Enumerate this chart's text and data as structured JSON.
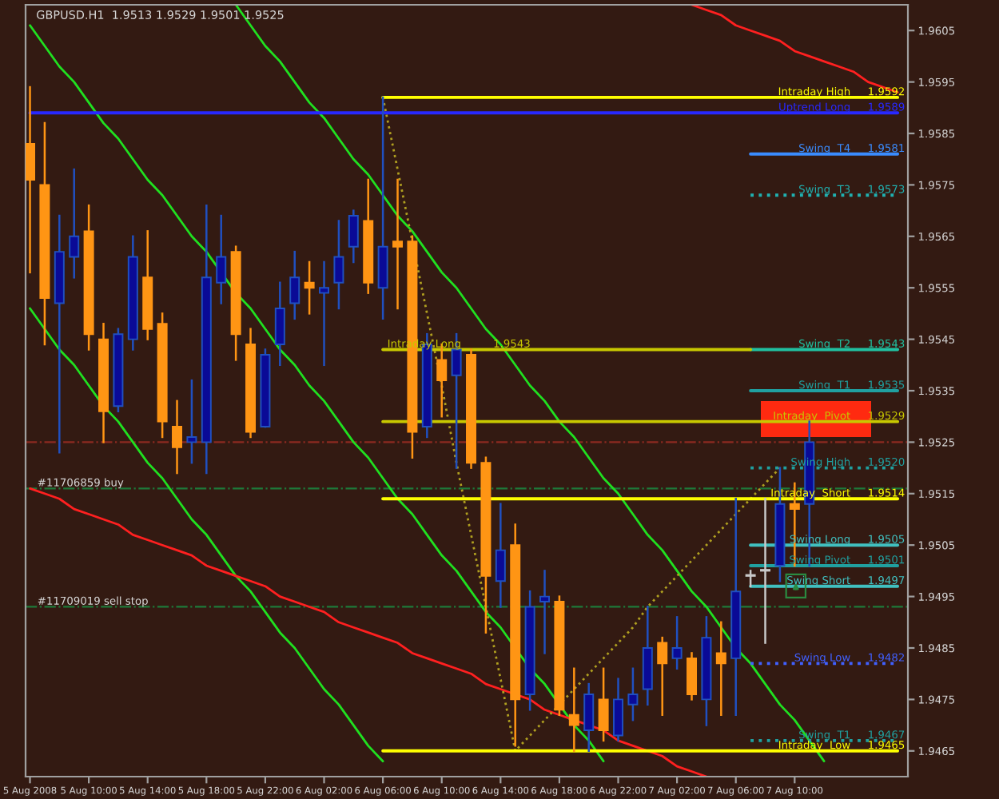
{
  "chart_data": {
    "type": "candlestick",
    "title": "GBPUSD.H1  1.9513 1.9529 1.9501 1.9525",
    "categories": [
      "5 Aug 2008",
      null,
      null,
      null,
      "5 Aug 10:00",
      null,
      null,
      null,
      "5 Aug 14:00",
      null,
      null,
      null,
      "5 Aug 18:00",
      null,
      null,
      null,
      "5 Aug 22:00",
      null,
      null,
      null,
      "6 Aug 02:00",
      null,
      null,
      null,
      "6 Aug 06:00",
      null,
      null,
      null,
      "6 Aug 10:00",
      null,
      null,
      null,
      "6 Aug 14:00",
      null,
      null,
      null,
      "6 Aug 18:00",
      null,
      null,
      null,
      "6 Aug 22:00",
      null,
      null,
      null,
      "7 Aug 02:00",
      null,
      null,
      null,
      "7 Aug 06:00",
      null,
      null,
      null,
      "7 Aug 10:00",
      null,
      null,
      null,
      null,
      null,
      null,
      null
    ],
    "ohlc": [
      [
        1.9583,
        1.9594,
        1.9558,
        1.9576
      ],
      [
        1.9575,
        1.9587,
        1.9544,
        1.9553
      ],
      [
        1.9552,
        1.9569,
        1.9523,
        1.9562
      ],
      [
        1.9561,
        1.9578,
        1.9557,
        1.9565
      ],
      [
        1.9566,
        1.9571,
        1.9543,
        1.9546
      ],
      [
        1.9545,
        1.9548,
        1.9525,
        1.9531
      ],
      [
        1.9532,
        1.9547,
        1.9531,
        1.9546
      ],
      [
        1.9545,
        1.9565,
        1.9543,
        1.9561
      ],
      [
        1.9557,
        1.9566,
        1.9545,
        1.9547
      ],
      [
        1.9548,
        1.955,
        1.9526,
        1.9529
      ],
      [
        1.9528,
        1.9533,
        1.9519,
        1.9524
      ],
      [
        1.9525,
        1.9537,
        1.9521,
        1.9526
      ],
      [
        1.9525,
        1.9571,
        1.9519,
        1.9557
      ],
      [
        1.9556,
        1.9569,
        1.9552,
        1.9561
      ],
      [
        1.9562,
        1.9563,
        1.9541,
        1.9546
      ],
      [
        1.9544,
        1.9547,
        1.9526,
        1.9527
      ],
      [
        1.9528,
        1.9543,
        1.9528,
        1.9542
      ],
      [
        1.9544,
        1.9556,
        1.954,
        1.9551
      ],
      [
        1.9552,
        1.9562,
        1.9549,
        1.9557
      ],
      [
        1.9556,
        1.956,
        1.955,
        1.9555
      ],
      [
        1.9554,
        1.956,
        1.954,
        1.9555
      ],
      [
        1.9556,
        1.9568,
        1.9551,
        1.9561
      ],
      [
        1.9563,
        1.957,
        1.956,
        1.9569
      ],
      [
        1.9568,
        1.9576,
        1.9554,
        1.9556
      ],
      [
        1.9555,
        1.9592,
        1.9549,
        1.9563
      ],
      [
        1.9564,
        1.9576,
        1.9551,
        1.9563
      ],
      [
        1.9564,
        1.9565,
        1.9522,
        1.9527
      ],
      [
        1.9528,
        1.9546,
        1.9526,
        1.9544
      ],
      [
        1.9541,
        1.9544,
        1.953,
        1.9537
      ],
      [
        1.9538,
        1.9546,
        1.952,
        1.9543
      ],
      [
        1.9542,
        1.9543,
        1.952,
        1.9521
      ],
      [
        1.9521,
        1.9522,
        1.9488,
        1.9499
      ],
      [
        1.9498,
        1.9513,
        1.9493,
        1.9504
      ],
      [
        1.9505,
        1.9509,
        1.9466,
        1.9475
      ],
      [
        1.9476,
        1.9496,
        1.9473,
        1.9493
      ],
      [
        1.9494,
        1.95,
        1.9484,
        1.9495
      ],
      [
        1.9494,
        1.9495,
        1.9472,
        1.9473
      ],
      [
        1.9472,
        1.9481,
        1.9465,
        1.947
      ],
      [
        1.9469,
        1.9478,
        1.9465,
        1.9476
      ],
      [
        1.9475,
        1.9481,
        1.9467,
        1.9469
      ],
      [
        1.9468,
        1.9479,
        1.9467,
        1.9475
      ],
      [
        1.9474,
        1.9481,
        1.9471,
        1.9476
      ],
      [
        1.9477,
        1.9493,
        1.9474,
        1.9485
      ],
      [
        1.9486,
        1.9487,
        1.9472,
        1.9482
      ],
      [
        1.9483,
        1.9491,
        1.9481,
        1.9485
      ],
      [
        1.9483,
        1.9484,
        1.9475,
        1.9476
      ],
      [
        1.9475,
        1.9491,
        1.947,
        1.9487
      ],
      [
        1.9484,
        1.949,
        1.9472,
        1.9482
      ],
      [
        1.9483,
        1.9514,
        1.9472,
        1.9496
      ],
      [
        1.9499,
        1.95,
        1.9497,
        1.9499
      ],
      [
        1.95,
        1.9514,
        1.9486,
        1.95
      ],
      [
        1.9501,
        1.952,
        1.9498,
        1.9513
      ],
      [
        1.9513,
        1.9517,
        1.9501,
        1.9512
      ],
      [
        1.9513,
        1.9529,
        1.9501,
        1.9525
      ],
      null,
      null,
      null,
      null,
      null,
      null
    ],
    "colors": [
      "#ff9514",
      "#ff9514",
      "#0a0a96",
      "#0a0a96",
      "#ff9514",
      "#ff9514",
      "#0a0a96",
      "#0a0a96",
      "#ff9514",
      "#ff9514",
      "#ff9514",
      "#0a0a96",
      "#0a0a96",
      "#0a0a96",
      "#ff9514",
      "#ff9514",
      "#0a0a96",
      "#0a0a96",
      "#0a0a96",
      "#ff9514",
      "#0a0a96",
      "#0a0a96",
      "#0a0a96",
      "#ff9514",
      "#0a0a96",
      "#ff9514",
      "#ff9514",
      "#0a0a96",
      "#ff9514",
      "#0a0a96",
      "#ff9514",
      "#ff9514",
      "#0a0a96",
      "#ff9514",
      "#0a0a96",
      "#0a0a96",
      "#ff9514",
      "#ff9514",
      "#0a0a96",
      "#ff9514",
      "#0a0a96",
      "#0a0a96",
      "#0a0a96",
      "#ff9514",
      "#0a0a96",
      "#ff9514",
      "#0a0a96",
      "#ff9514",
      "#0a0a96",
      "#c8c8c8",
      "#c8c8c8",
      "#0a0a96",
      "#ff9514",
      "#0a0a96",
      null,
      null,
      null,
      null,
      null,
      null
    ],
    "series": [
      {
        "type": "line",
        "color": "#20e020",
        "values": [
          1.9551,
          1.9547,
          1.9543,
          1.954,
          1.9536,
          1.9532,
          1.9529,
          1.9525,
          1.9521,
          1.9518,
          1.9514,
          1.951,
          1.9507,
          1.9503,
          1.9499,
          1.9496,
          1.9492,
          1.9488,
          1.9485,
          1.9481,
          1.9477,
          1.9474,
          1.947,
          1.9466,
          1.9463,
          null,
          null,
          null,
          null,
          null,
          null,
          null,
          null,
          null,
          null,
          null,
          null,
          null,
          null,
          null,
          null,
          null,
          null,
          null,
          null,
          null,
          null,
          null,
          null,
          null,
          null,
          null,
          null,
          null,
          null,
          null,
          null,
          null,
          null,
          null
        ]
      },
      {
        "type": "line",
        "color": "#20e020",
        "values": [
          1.9606,
          1.9602,
          1.9598,
          1.9595,
          1.9591,
          1.9587,
          1.9584,
          1.958,
          1.9576,
          1.9573,
          1.9569,
          1.9565,
          1.9562,
          1.9558,
          1.9554,
          1.9551,
          1.9547,
          1.9543,
          1.954,
          1.9536,
          1.9533,
          1.9529,
          1.9525,
          1.9522,
          1.9518,
          1.9514,
          1.9511,
          1.9507,
          1.9503,
          1.95,
          1.9496,
          1.9492,
          1.9489,
          1.9485,
          1.9481,
          1.9478,
          1.9474,
          1.947,
          1.9467,
          1.9463,
          null,
          null,
          null,
          null,
          null,
          null,
          null,
          null,
          null,
          null,
          null,
          null,
          null,
          null,
          null,
          null,
          null,
          null,
          null,
          null
        ]
      },
      {
        "type": "line",
        "color": "#20e020",
        "values": [
          null,
          null,
          null,
          null,
          null,
          null,
          null,
          null,
          null,
          null,
          null,
          null,
          null,
          null,
          1.961,
          1.9606,
          1.9602,
          1.9599,
          1.9595,
          1.9591,
          1.9588,
          1.9584,
          1.958,
          1.9577,
          1.9573,
          1.9569,
          1.9566,
          1.9562,
          1.9558,
          1.9555,
          1.9551,
          1.9547,
          1.9544,
          1.954,
          1.9536,
          1.9533,
          1.9529,
          1.9526,
          1.9522,
          1.9518,
          1.9515,
          1.9511,
          1.9507,
          1.9504,
          1.95,
          1.9496,
          1.9493,
          1.9489,
          1.9485,
          1.9482,
          1.9478,
          1.9474,
          1.9471,
          1.9467,
          1.9463,
          null,
          null,
          null,
          null,
          null
        ]
      },
      {
        "type": "line",
        "color": "#ff2020",
        "values": [
          null,
          null,
          null,
          null,
          null,
          null,
          null,
          null,
          null,
          null,
          null,
          null,
          null,
          null,
          null,
          null,
          null,
          null,
          null,
          null,
          null,
          null,
          null,
          null,
          null,
          null,
          null,
          null,
          null,
          null,
          null,
          null,
          null,
          null,
          null,
          null,
          null,
          null,
          null,
          null,
          null,
          null,
          null,
          null,
          null,
          1.961,
          1.9609,
          1.9608,
          1.9606,
          1.9605,
          1.9604,
          1.9603,
          1.9601,
          1.96,
          1.9599,
          1.9598,
          1.9597,
          1.9595,
          1.9594,
          1.9593
        ]
      },
      {
        "type": "line",
        "color": "#ff2020",
        "values": [
          1.9516,
          1.9515,
          1.9514,
          1.9512,
          1.9511,
          1.951,
          1.9509,
          1.9507,
          1.9506,
          1.9505,
          1.9504,
          1.9503,
          1.9501,
          1.95,
          1.9499,
          1.9498,
          1.9497,
          1.9495,
          1.9494,
          1.9493,
          1.9492,
          1.949,
          1.9489,
          1.9488,
          1.9487,
          1.9486,
          1.9484,
          1.9483,
          1.9482,
          1.9481,
          1.948,
          1.9478,
          1.9477,
          1.9476,
          1.9475,
          1.9473,
          1.9472,
          1.9471,
          1.947,
          1.9469,
          1.9467,
          1.9466,
          1.9465,
          1.9464,
          1.9462,
          1.9461,
          1.946,
          null,
          null,
          null,
          null,
          null,
          null,
          null,
          null,
          null,
          null,
          null,
          null,
          null
        ]
      },
      {
        "type": "line",
        "color": "#b0a020",
        "line_style": "dotted",
        "values": [
          null,
          null,
          null,
          null,
          null,
          null,
          null,
          null,
          null,
          null,
          null,
          null,
          null,
          null,
          null,
          null,
          null,
          null,
          null,
          null,
          null,
          null,
          null,
          null,
          1.9592,
          1.9578,
          1.9564,
          1.955,
          1.9536,
          1.9521,
          1.9507,
          1.9493,
          1.9479,
          1.9465,
          1.9468,
          1.9471,
          1.9474,
          1.9477,
          1.948,
          1.9483,
          1.9486,
          1.9489,
          1.9493,
          1.9496,
          1.9499,
          1.9502,
          1.9505,
          1.9508,
          1.9511,
          1.9514,
          1.9517,
          1.952,
          null,
          null,
          null,
          null,
          null,
          null,
          null,
          null
        ]
      },
      {
        "type": "line",
        "name": "Intraday High",
        "color": "#ffff00",
        "values": [
          null,
          null,
          null,
          null,
          null,
          null,
          null,
          null,
          null,
          null,
          null,
          null,
          null,
          null,
          null,
          null,
          null,
          null,
          null,
          null,
          null,
          null,
          null,
          null,
          1.9592,
          1.9592,
          1.9592,
          1.9592,
          1.9592,
          1.9592,
          1.9592,
          1.9592,
          1.9592,
          1.9592,
          1.9592,
          1.9592,
          1.9592,
          1.9592,
          1.9592,
          1.9592,
          1.9592,
          1.9592,
          1.9592,
          1.9592,
          1.9592,
          1.9592,
          1.9592,
          1.9592,
          1.9592,
          1.9592,
          1.9592,
          1.9592,
          1.9592,
          1.9592,
          1.9592,
          1.9592,
          1.9592,
          1.9592,
          1.9592,
          1.9592
        ]
      },
      {
        "type": "line",
        "name": "Uptrend Long",
        "color": "#2828ff",
        "values": [
          1.9589,
          1.9589,
          1.9589,
          1.9589,
          1.9589,
          1.9589,
          1.9589,
          1.9589,
          1.9589,
          1.9589,
          1.9589,
          1.9589,
          1.9589,
          1.9589,
          1.9589,
          1.9589,
          1.9589,
          1.9589,
          1.9589,
          1.9589,
          1.9589,
          1.9589,
          1.9589,
          1.9589,
          1.9589,
          1.9589,
          1.9589,
          1.9589,
          1.9589,
          1.9589,
          1.9589,
          1.9589,
          1.9589,
          1.9589,
          1.9589,
          1.9589,
          1.9589,
          1.9589,
          1.9589,
          1.9589,
          1.9589,
          1.9589,
          1.9589,
          1.9589,
          1.9589,
          1.9589,
          1.9589,
          1.9589,
          1.9589,
          1.9589,
          1.9589,
          1.9589,
          1.9589,
          1.9589,
          1.9589,
          1.9589,
          1.9589,
          1.9589,
          1.9589,
          1.9589
        ]
      },
      {
        "type": "line",
        "name": "Swing  T4",
        "color": "#3a8cff",
        "values": [
          null,
          null,
          null,
          null,
          null,
          null,
          null,
          null,
          null,
          null,
          null,
          null,
          null,
          null,
          null,
          null,
          null,
          null,
          null,
          null,
          null,
          null,
          null,
          null,
          null,
          null,
          null,
          null,
          null,
          null,
          null,
          null,
          null,
          null,
          null,
          null,
          null,
          null,
          null,
          null,
          null,
          null,
          null,
          null,
          null,
          null,
          null,
          null,
          null,
          1.9581,
          1.9581,
          1.9581,
          1.9581,
          1.9581,
          1.9581,
          1.9581,
          1.9581,
          1.9581,
          1.9581,
          1.9581
        ]
      },
      {
        "type": "line",
        "name": "Swing  T3",
        "color": "#20b0b0",
        "line_style": "dotted",
        "values": [
          null,
          null,
          null,
          null,
          null,
          null,
          null,
          null,
          null,
          null,
          null,
          null,
          null,
          null,
          null,
          null,
          null,
          null,
          null,
          null,
          null,
          null,
          null,
          null,
          null,
          null,
          null,
          null,
          null,
          null,
          null,
          null,
          null,
          null,
          null,
          null,
          null,
          null,
          null,
          null,
          null,
          null,
          null,
          null,
          null,
          null,
          null,
          null,
          null,
          1.9573,
          1.9573,
          1.9573,
          1.9573,
          1.9573,
          1.9573,
          1.9573,
          1.9573,
          1.9573,
          1.9573,
          1.9573
        ]
      },
      {
        "type": "line",
        "name": "Swing  T2",
        "color": "#20c0a0",
        "values": [
          null,
          null,
          null,
          null,
          null,
          null,
          null,
          null,
          null,
          null,
          null,
          null,
          null,
          null,
          null,
          null,
          null,
          null,
          null,
          null,
          null,
          null,
          null,
          null,
          null,
          null,
          null,
          null,
          null,
          null,
          null,
          null,
          null,
          null,
          null,
          null,
          null,
          null,
          null,
          null,
          null,
          null,
          null,
          null,
          null,
          null,
          null,
          null,
          null,
          1.9543,
          1.9543,
          1.9543,
          1.9543,
          1.9543,
          1.9543,
          1.9543,
          1.9543,
          1.9543,
          1.9543,
          1.9543
        ]
      },
      {
        "type": "line",
        "name": "Intraday Long",
        "color": "#c8c800",
        "values": [
          null,
          null,
          null,
          null,
          null,
          null,
          null,
          null,
          null,
          null,
          null,
          null,
          null,
          null,
          null,
          null,
          null,
          null,
          null,
          null,
          null,
          null,
          null,
          null,
          1.9543,
          1.9543,
          1.9543,
          1.9543,
          1.9543,
          1.9543,
          1.9543,
          1.9543,
          1.9543,
          1.9543,
          1.9543,
          1.9543,
          1.9543,
          1.9543,
          1.9543,
          1.9543,
          1.9543,
          1.9543,
          1.9543,
          1.9543,
          1.9543,
          1.9543,
          1.9543,
          1.9543,
          1.9543,
          1.9543,
          null,
          null,
          null,
          null,
          null,
          null,
          null,
          null,
          null,
          null
        ]
      },
      {
        "type": "line",
        "name": "Swing  T1",
        "color": "#20a0a0",
        "values": [
          null,
          null,
          null,
          null,
          null,
          null,
          null,
          null,
          null,
          null,
          null,
          null,
          null,
          null,
          null,
          null,
          null,
          null,
          null,
          null,
          null,
          null,
          null,
          null,
          null,
          null,
          null,
          null,
          null,
          null,
          null,
          null,
          null,
          null,
          null,
          null,
          null,
          null,
          null,
          null,
          null,
          null,
          null,
          null,
          null,
          null,
          null,
          null,
          null,
          1.9535,
          1.9535,
          1.9535,
          1.9535,
          1.9535,
          1.9535,
          1.9535,
          1.9535,
          1.9535,
          1.9535,
          1.9535
        ]
      },
      {
        "type": "line",
        "name": "Intraday  Pivot",
        "color": "#c8c800",
        "values": [
          null,
          null,
          null,
          null,
          null,
          null,
          null,
          null,
          null,
          null,
          null,
          null,
          null,
          null,
          null,
          null,
          null,
          null,
          null,
          null,
          null,
          null,
          null,
          null,
          1.9529,
          1.9529,
          1.9529,
          1.9529,
          1.9529,
          1.9529,
          1.9529,
          1.9529,
          1.9529,
          1.9529,
          1.9529,
          1.9529,
          1.9529,
          1.9529,
          1.9529,
          1.9529,
          1.9529,
          1.9529,
          1.9529,
          1.9529,
          1.9529,
          1.9529,
          1.9529,
          1.9529,
          1.9529,
          1.9529,
          1.9529,
          1.9529,
          1.9529,
          1.9529,
          1.9529,
          1.9529,
          1.9529,
          1.9529,
          1.9529,
          1.9529
        ]
      },
      {
        "type": "line",
        "name": "Swing High",
        "color": "#20a0a0",
        "line_style": "dotted",
        "values": [
          null,
          null,
          null,
          null,
          null,
          null,
          null,
          null,
          null,
          null,
          null,
          null,
          null,
          null,
          null,
          null,
          null,
          null,
          null,
          null,
          null,
          null,
          null,
          null,
          null,
          null,
          null,
          null,
          null,
          null,
          null,
          null,
          null,
          null,
          null,
          null,
          null,
          null,
          null,
          null,
          null,
          null,
          null,
          null,
          null,
          null,
          null,
          null,
          null,
          1.952,
          1.952,
          1.952,
          1.952,
          1.952,
          1.952,
          1.952,
          1.952,
          1.952,
          1.952,
          1.952
        ]
      },
      {
        "type": "line",
        "name": "Intraday  Short",
        "color": "#ffff00",
        "values": [
          null,
          null,
          null,
          null,
          null,
          null,
          null,
          null,
          null,
          null,
          null,
          null,
          null,
          null,
          null,
          null,
          null,
          null,
          null,
          null,
          null,
          null,
          null,
          null,
          1.9514,
          1.9514,
          1.9514,
          1.9514,
          1.9514,
          1.9514,
          1.9514,
          1.9514,
          1.9514,
          1.9514,
          1.9514,
          1.9514,
          1.9514,
          1.9514,
          1.9514,
          1.9514,
          1.9514,
          1.9514,
          1.9514,
          1.9514,
          1.9514,
          1.9514,
          1.9514,
          1.9514,
          1.9514,
          1.9514,
          1.9514,
          1.9514,
          1.9514,
          1.9514,
          1.9514,
          1.9514,
          1.9514,
          1.9514,
          1.9514,
          1.9514
        ]
      },
      {
        "type": "line",
        "name": "Swing Long",
        "color": "#40c0c0",
        "values": [
          null,
          null,
          null,
          null,
          null,
          null,
          null,
          null,
          null,
          null,
          null,
          null,
          null,
          null,
          null,
          null,
          null,
          null,
          null,
          null,
          null,
          null,
          null,
          null,
          null,
          null,
          null,
          null,
          null,
          null,
          null,
          null,
          null,
          null,
          null,
          null,
          null,
          null,
          null,
          null,
          null,
          null,
          null,
          null,
          null,
          null,
          null,
          null,
          null,
          1.9505,
          1.9505,
          1.9505,
          1.9505,
          1.9505,
          1.9505,
          1.9505,
          1.9505,
          1.9505,
          1.9505,
          1.9505
        ]
      },
      {
        "type": "line",
        "name": "Swing Pivot",
        "color": "#20a0a0",
        "values": [
          null,
          null,
          null,
          null,
          null,
          null,
          null,
          null,
          null,
          null,
          null,
          null,
          null,
          null,
          null,
          null,
          null,
          null,
          null,
          null,
          null,
          null,
          null,
          null,
          null,
          null,
          null,
          null,
          null,
          null,
          null,
          null,
          null,
          null,
          null,
          null,
          null,
          null,
          null,
          null,
          null,
          null,
          null,
          null,
          null,
          null,
          null,
          null,
          null,
          1.9501,
          1.9501,
          1.9501,
          1.9501,
          1.9501,
          1.9501,
          1.9501,
          1.9501,
          1.9501,
          1.9501,
          1.9501
        ]
      },
      {
        "type": "line",
        "name": "Swing Short",
        "color": "#40c0c0",
        "values": [
          null,
          null,
          null,
          null,
          null,
          null,
          null,
          null,
          null,
          null,
          null,
          null,
          null,
          null,
          null,
          null,
          null,
          null,
          null,
          null,
          null,
          null,
          null,
          null,
          null,
          null,
          null,
          null,
          null,
          null,
          null,
          null,
          null,
          null,
          null,
          null,
          null,
          null,
          null,
          null,
          null,
          null,
          null,
          null,
          null,
          null,
          null,
          null,
          null,
          1.9497,
          1.9497,
          1.9497,
          1.9497,
          1.9497,
          1.9497,
          1.9497,
          1.9497,
          1.9497,
          1.9497,
          1.9497
        ]
      },
      {
        "type": "line",
        "name": "Swing Low",
        "color": "#4060ff",
        "line_style": "dotted",
        "values": [
          null,
          null,
          null,
          null,
          null,
          null,
          null,
          null,
          null,
          null,
          null,
          null,
          null,
          null,
          null,
          null,
          null,
          null,
          null,
          null,
          null,
          null,
          null,
          null,
          null,
          null,
          null,
          null,
          null,
          null,
          null,
          null,
          null,
          null,
          null,
          null,
          null,
          null,
          null,
          null,
          null,
          null,
          null,
          null,
          null,
          null,
          null,
          null,
          null,
          1.9482,
          1.9482,
          1.9482,
          1.9482,
          1.9482,
          1.9482,
          1.9482,
          1.9482,
          1.9482,
          1.9482,
          1.9482
        ]
      },
      {
        "type": "line",
        "name": "Swing  T1",
        "color": "#20a0a0",
        "line_style": "dotted",
        "values": [
          null,
          null,
          null,
          null,
          null,
          null,
          null,
          null,
          null,
          null,
          null,
          null,
          null,
          null,
          null,
          null,
          null,
          null,
          null,
          null,
          null,
          null,
          null,
          null,
          null,
          null,
          null,
          null,
          null,
          null,
          null,
          null,
          null,
          null,
          null,
          null,
          null,
          null,
          null,
          null,
          null,
          null,
          null,
          null,
          null,
          null,
          null,
          null,
          null,
          1.9467,
          1.9467,
          1.9467,
          1.9467,
          1.9467,
          1.9467,
          1.9467,
          1.9467,
          1.9467,
          1.9467,
          1.9467
        ]
      },
      {
        "type": "line",
        "name": "Intraday  Low",
        "color": "#ffff00",
        "values": [
          null,
          null,
          null,
          null,
          null,
          null,
          null,
          null,
          null,
          null,
          null,
          null,
          null,
          null,
          null,
          null,
          null,
          null,
          null,
          null,
          null,
          null,
          null,
          null,
          1.9465,
          1.9465,
          1.9465,
          1.9465,
          1.9465,
          1.9465,
          1.9465,
          1.9465,
          1.9465,
          1.9465,
          1.9465,
          1.9465,
          1.9465,
          1.9465,
          1.9465,
          1.9465,
          1.9465,
          1.9465,
          1.9465,
          1.9465,
          1.9465,
          1.9465,
          1.9465,
          1.9465,
          1.9465,
          1.9465,
          1.9465,
          1.9465,
          1.9465,
          1.9465,
          1.9465,
          1.9465,
          1.9465,
          1.9465,
          1.9465,
          1.9465
        ]
      }
    ],
    "annotations": [
      {
        "text": "1.9592",
        "y": 1.9592
      },
      {
        "text": "1.9589",
        "y": 1.9589
      },
      {
        "text": "1.9581",
        "y": 1.9581
      },
      {
        "text": "1.9573",
        "y": 1.9573
      },
      {
        "text": "1.9543",
        "y": 1.9543
      },
      {
        "text": "1.9543",
        "y": 1.9543
      },
      {
        "text": "1.9535",
        "y": 1.9535
      },
      {
        "text": "1.9529",
        "y": 1.9529
      },
      {
        "text": "1.9520",
        "y": 1.952
      },
      {
        "text": "1.9514",
        "y": 1.9514
      },
      {
        "text": "1.9505",
        "y": 1.9505
      },
      {
        "text": "1.9501",
        "y": 1.9501
      },
      {
        "text": "1.9497",
        "y": 1.9497
      },
      {
        "text": "1.9482",
        "y": 1.9482
      },
      {
        "text": "1.9467",
        "y": 1.9467
      },
      {
        "text": "1.9465",
        "y": 1.9465
      }
    ],
    "ref_lines": [
      {
        "axis": "y",
        "value": 1.9525,
        "color": "#8c2a20",
        "line_style": "dashdot"
      },
      {
        "axis": "y",
        "value": 1.9516,
        "label": "#11706859 buy",
        "color": "#1e7a3a",
        "line_style": "dashdot"
      },
      {
        "axis": "y",
        "value": 1.9493,
        "label": "#11709019 sell stop",
        "color": "#1e7a3a",
        "line_style": "dashdot"
      }
    ],
    "bands": [
      {
        "axis": "y",
        "from": 1.9526,
        "to": 1.9533,
        "color": "#ff2a10"
      }
    ],
    "ylim": [
      1.946,
      1.961
    ],
    "yticks": [
      1.9605,
      1.9595,
      1.9585,
      1.9575,
      1.9565,
      1.9555,
      1.9545,
      1.9535,
      1.9525,
      1.9515,
      1.9505,
      1.9495,
      1.9485,
      1.9475,
      1.9465
    ]
  }
}
